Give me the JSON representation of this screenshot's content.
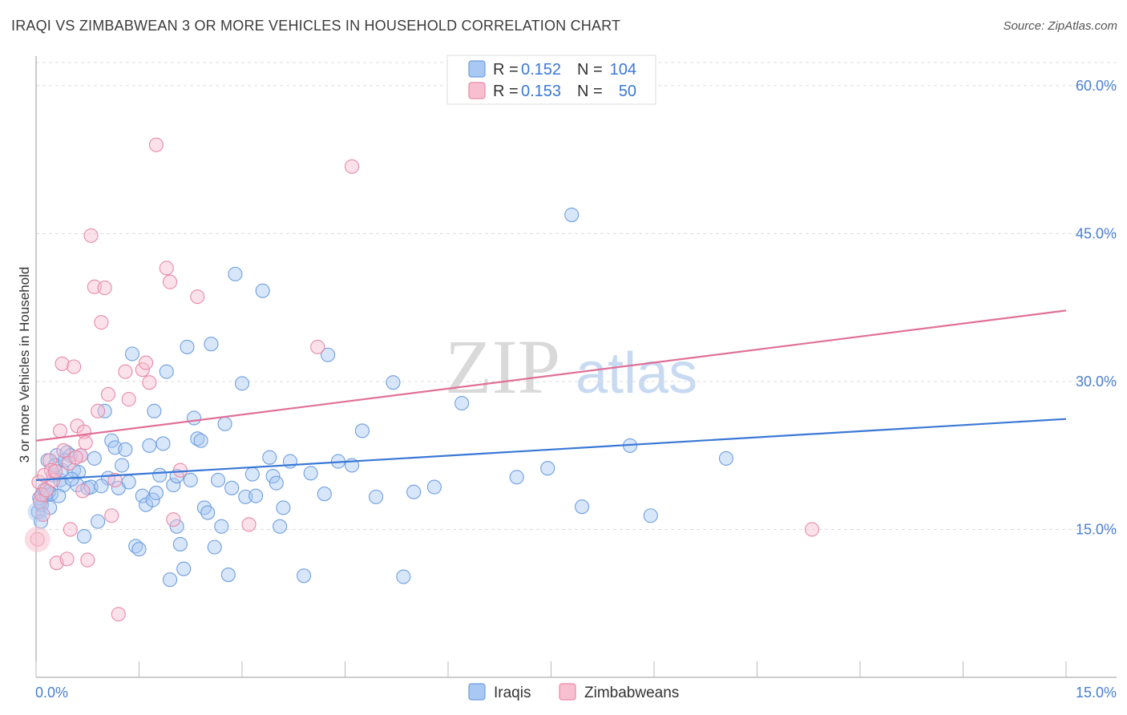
{
  "title": "IRAQI VS ZIMBABWEAN 3 OR MORE VEHICLES IN HOUSEHOLD CORRELATION CHART",
  "source": "Source: ZipAtlas.com",
  "watermark": {
    "zip": "ZIP",
    "atlas": "atlas"
  },
  "legend": {
    "r_label": "R =",
    "n_label": "N =",
    "rows": [
      {
        "name": "Iraqis",
        "r": "0.152",
        "n": "104",
        "fill": "#a9c8f2",
        "stroke": "#6f9fe0"
      },
      {
        "name": "Zimbabweans",
        "r": "0.153",
        "n": "50",
        "fill": "#f7bfd0",
        "stroke": "#e88aa8"
      }
    ]
  },
  "chart_data": {
    "type": "scatter",
    "xlabel": "",
    "ylabel": "3 or more Vehicles in Household",
    "xlim": [
      0,
      15
    ],
    "ylim": [
      0,
      63
    ],
    "x_tick_labels": [
      "0.0%",
      "15.0%"
    ],
    "y_ticks": [
      15,
      30,
      45,
      60
    ],
    "y_tick_labels": [
      "15.0%",
      "30.0%",
      "45.0%",
      "60.0%"
    ],
    "grid": true,
    "legend_position": "top-center",
    "colors": {
      "Iraqis": "#6f9fe0",
      "Zimbabweans": "#e88aa8",
      "iraqi_line": "#3a78d6",
      "zim_line": "#e07098"
    },
    "series": [
      {
        "name": "Iraqis",
        "r": 0.152,
        "n": 104,
        "trend": {
          "x": [
            0,
            15
          ],
          "y": [
            20.0,
            26.2
          ]
        },
        "points": [
          [
            0.03,
            16.8
          ],
          [
            0.05,
            18.2
          ],
          [
            0.08,
            17.5
          ],
          [
            0.1,
            18.6
          ],
          [
            0.12,
            19.0
          ],
          [
            0.15,
            18.5
          ],
          [
            0.17,
            22.0
          ],
          [
            0.2,
            17.2
          ],
          [
            0.22,
            18.6
          ],
          [
            0.25,
            20.5
          ],
          [
            0.3,
            22.5
          ],
          [
            0.35,
            20.0
          ],
          [
            0.38,
            21.0
          ],
          [
            0.4,
            19.5
          ],
          [
            0.45,
            22.8
          ],
          [
            0.5,
            22.5
          ],
          [
            0.55,
            21.0
          ],
          [
            0.6,
            19.5
          ],
          [
            0.65,
            22.5
          ],
          [
            0.7,
            14.3
          ],
          [
            0.75,
            19.2
          ],
          [
            0.8,
            19.3
          ],
          [
            0.85,
            22.2
          ],
          [
            0.9,
            15.8
          ],
          [
            1.0,
            27.0
          ],
          [
            1.05,
            20.2
          ],
          [
            1.1,
            24.0
          ],
          [
            1.15,
            23.3
          ],
          [
            1.2,
            19.2
          ],
          [
            1.25,
            21.5
          ],
          [
            1.3,
            23.1
          ],
          [
            1.4,
            32.8
          ],
          [
            1.45,
            13.3
          ],
          [
            1.5,
            13.0
          ],
          [
            1.55,
            18.4
          ],
          [
            1.6,
            17.5
          ],
          [
            1.65,
            23.5
          ],
          [
            1.7,
            18.0
          ],
          [
            1.72,
            27.0
          ],
          [
            1.8,
            20.5
          ],
          [
            1.85,
            23.7
          ],
          [
            1.9,
            31.0
          ],
          [
            1.95,
            9.9
          ],
          [
            2.0,
            19.5
          ],
          [
            2.05,
            15.3
          ],
          [
            2.1,
            13.5
          ],
          [
            2.15,
            11.0
          ],
          [
            2.2,
            33.5
          ],
          [
            2.25,
            20.0
          ],
          [
            2.3,
            26.3
          ],
          [
            2.35,
            24.2
          ],
          [
            2.4,
            24.0
          ],
          [
            2.45,
            17.2
          ],
          [
            2.5,
            16.7
          ],
          [
            2.55,
            33.8
          ],
          [
            2.6,
            13.2
          ],
          [
            2.65,
            20.0
          ],
          [
            2.7,
            15.3
          ],
          [
            2.75,
            25.7
          ],
          [
            2.8,
            10.4
          ],
          [
            2.9,
            40.9
          ],
          [
            3.0,
            29.8
          ],
          [
            3.05,
            18.3
          ],
          [
            3.2,
            18.4
          ],
          [
            3.3,
            39.2
          ],
          [
            3.4,
            22.3
          ],
          [
            3.45,
            20.4
          ],
          [
            3.5,
            19.7
          ],
          [
            3.55,
            15.3
          ],
          [
            3.6,
            17.2
          ],
          [
            3.9,
            10.3
          ],
          [
            4.2,
            18.6
          ],
          [
            4.25,
            32.7
          ],
          [
            4.4,
            21.9
          ],
          [
            4.6,
            21.5
          ],
          [
            4.75,
            25.0
          ],
          [
            4.95,
            18.3
          ],
          [
            5.2,
            29.9
          ],
          [
            5.35,
            10.2
          ],
          [
            5.5,
            18.8
          ],
          [
            5.8,
            19.3
          ],
          [
            6.2,
            27.8
          ],
          [
            7.0,
            20.3
          ],
          [
            7.45,
            21.2
          ],
          [
            7.8,
            46.9
          ],
          [
            7.95,
            17.3
          ],
          [
            8.65,
            23.5
          ],
          [
            8.95,
            16.4
          ],
          [
            10.05,
            22.2
          ],
          [
            0.07,
            15.8
          ],
          [
            0.18,
            18.8
          ],
          [
            0.28,
            21.5
          ],
          [
            0.42,
            22.0
          ],
          [
            0.62,
            20.8
          ],
          [
            0.95,
            19.4
          ],
          [
            1.35,
            19.8
          ],
          [
            1.75,
            18.7
          ],
          [
            2.05,
            20.4
          ],
          [
            2.85,
            19.2
          ],
          [
            3.15,
            20.6
          ],
          [
            3.7,
            21.9
          ],
          [
            4.0,
            20.7
          ],
          [
            0.33,
            18.4
          ],
          [
            0.52,
            20.1
          ]
        ]
      },
      {
        "name": "Zimbabweans",
        "r": 0.153,
        "n": 50,
        "trend": {
          "x": [
            0,
            15
          ],
          "y": [
            24.0,
            37.2
          ]
        },
        "points": [
          [
            0.02,
            14.0
          ],
          [
            0.04,
            19.8
          ],
          [
            0.06,
            17.8
          ],
          [
            0.08,
            18.5
          ],
          [
            0.1,
            16.5
          ],
          [
            0.15,
            19.0
          ],
          [
            0.2,
            22.0
          ],
          [
            0.22,
            21.0
          ],
          [
            0.25,
            20.0
          ],
          [
            0.3,
            11.6
          ],
          [
            0.35,
            25.0
          ],
          [
            0.38,
            31.8
          ],
          [
            0.4,
            23.0
          ],
          [
            0.45,
            12.0
          ],
          [
            0.5,
            15.0
          ],
          [
            0.55,
            31.5
          ],
          [
            0.6,
            25.5
          ],
          [
            0.65,
            22.5
          ],
          [
            0.7,
            24.9
          ],
          [
            0.75,
            11.9
          ],
          [
            0.8,
            44.8
          ],
          [
            0.85,
            39.6
          ],
          [
            0.9,
            27.0
          ],
          [
            0.95,
            36.0
          ],
          [
            1.0,
            39.5
          ],
          [
            1.05,
            28.7
          ],
          [
            1.1,
            16.4
          ],
          [
            1.15,
            20.0
          ],
          [
            1.2,
            6.4
          ],
          [
            1.3,
            31.0
          ],
          [
            1.35,
            28.2
          ],
          [
            1.55,
            31.2
          ],
          [
            1.6,
            31.9
          ],
          [
            1.65,
            29.9
          ],
          [
            1.75,
            54.0
          ],
          [
            1.9,
            41.5
          ],
          [
            1.95,
            40.1
          ],
          [
            2.0,
            16.0
          ],
          [
            2.1,
            21.0
          ],
          [
            2.35,
            38.6
          ],
          [
            3.1,
            15.5
          ],
          [
            4.1,
            33.5
          ],
          [
            4.6,
            51.8
          ],
          [
            11.3,
            15.0
          ],
          [
            0.12,
            20.5
          ],
          [
            0.28,
            20.9
          ],
          [
            0.48,
            21.7
          ],
          [
            0.58,
            22.3
          ],
          [
            0.68,
            18.9
          ],
          [
            0.72,
            23.8
          ]
        ]
      }
    ]
  }
}
